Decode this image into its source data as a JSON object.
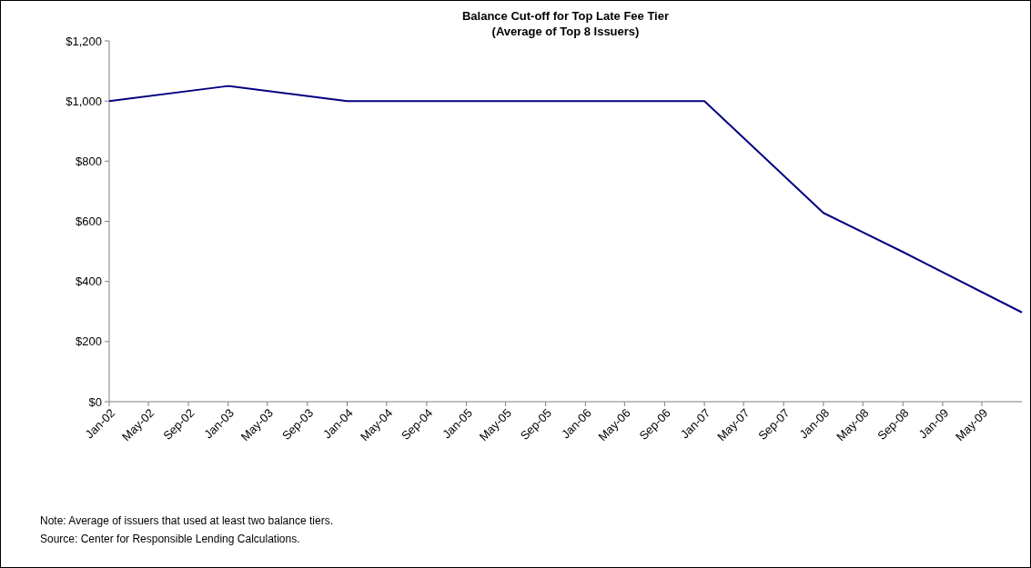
{
  "chart_data": {
    "type": "line",
    "title": "Balance Cut-off for Top Late Fee Tier",
    "subtitle": "(Average of Top 8 Issuers)",
    "x": [
      "2002-01",
      "2003-01",
      "2004-01",
      "2007-01",
      "2008-01",
      "2008-09",
      "2009-09"
    ],
    "series": [
      {
        "color": "#000080",
        "values": [
          1000,
          1050,
          1000,
          1000,
          628,
          498,
          297
        ]
      }
    ],
    "xlim": [
      "2002-01",
      "2009-09"
    ],
    "xticks": [
      {
        "value": "2002-01",
        "label": "Jan-02"
      },
      {
        "value": "2002-05",
        "label": "May-02"
      },
      {
        "value": "2002-09",
        "label": "Sep-02"
      },
      {
        "value": "2003-01",
        "label": "Jan-03"
      },
      {
        "value": "2003-05",
        "label": "May-03"
      },
      {
        "value": "2003-09",
        "label": "Sep-03"
      },
      {
        "value": "2004-01",
        "label": "Jan-04"
      },
      {
        "value": "2004-05",
        "label": "May-04"
      },
      {
        "value": "2004-09",
        "label": "Sep-04"
      },
      {
        "value": "2005-01",
        "label": "Jan-05"
      },
      {
        "value": "2005-05",
        "label": "May-05"
      },
      {
        "value": "2005-09",
        "label": "Sep-05"
      },
      {
        "value": "2006-01",
        "label": "Jan-06"
      },
      {
        "value": "2006-05",
        "label": "May-06"
      },
      {
        "value": "2006-09",
        "label": "Sep-06"
      },
      {
        "value": "2007-01",
        "label": "Jan-07"
      },
      {
        "value": "2007-05",
        "label": "May-07"
      },
      {
        "value": "2007-09",
        "label": "Sep-07"
      },
      {
        "value": "2008-01",
        "label": "Jan-08"
      },
      {
        "value": "2008-05",
        "label": "May-08"
      },
      {
        "value": "2008-09",
        "label": "Sep-08"
      },
      {
        "value": "2009-01",
        "label": "Jan-09"
      },
      {
        "value": "2009-05",
        "label": "May-09"
      }
    ],
    "ylim": [
      0,
      1200
    ],
    "yticks": [
      {
        "value": 0,
        "label": "$0"
      },
      {
        "value": 200,
        "label": "$200"
      },
      {
        "value": 400,
        "label": "$400"
      },
      {
        "value": 600,
        "label": "$600"
      },
      {
        "value": 800,
        "label": "$800"
      },
      {
        "value": 1000,
        "label": "$1,000"
      },
      {
        "value": 1200,
        "label": "$1,200"
      }
    ],
    "marker": "none",
    "line_style": "solid",
    "annotations": [
      "Note: Average of issuers that used at least two balance tiers.",
      "Source: Center for Responsible Lending Calculations."
    ]
  }
}
